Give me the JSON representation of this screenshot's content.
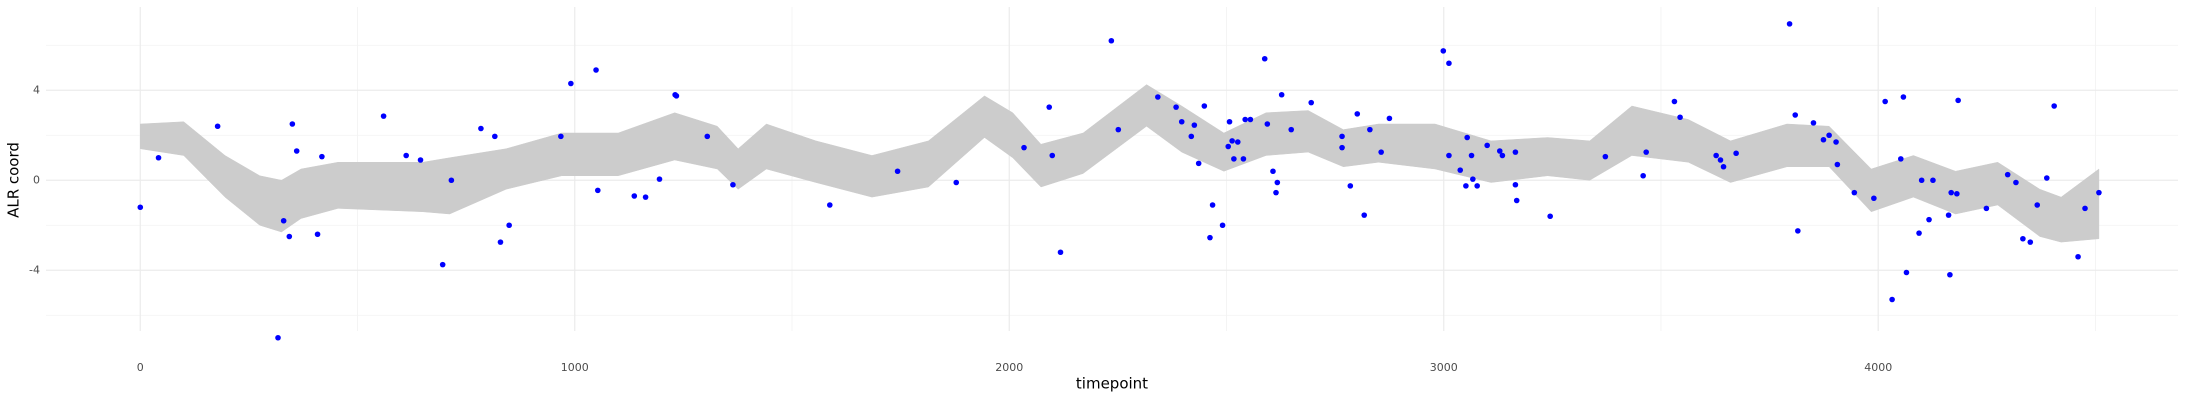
{
  "chart_data": {
    "type": "scatter",
    "x_label": "timepoint",
    "y_label": "ALR coord",
    "xlim": [
      -217,
      4690
    ],
    "ylim": [
      -6.7,
      7.7
    ],
    "xticks": [
      0,
      1000,
      2000,
      3000,
      4000
    ],
    "yticks": [
      -4,
      0,
      4
    ],
    "grid": true,
    "minor_grid": true,
    "color": "#0000ff",
    "ribbon_color": "#cccccc",
    "ribbon": {
      "x": [
        0,
        100,
        195,
        275,
        325,
        370,
        455,
        650,
        712,
        842,
        970,
        1100,
        1230,
        1328,
        1376,
        1441,
        1555,
        1684,
        1814,
        1943,
        2008,
        2073,
        2170,
        2316,
        2397,
        2494,
        2591,
        2688,
        2769,
        2850,
        2980,
        3109,
        3239,
        3336,
        3433,
        3563,
        3660,
        3790,
        3887,
        3984,
        4081,
        4178,
        4275,
        4372,
        4421,
        4508
      ],
      "upper": [
        2.5,
        2.6,
        1.1,
        0.2,
        0,
        0.5,
        0.8,
        0.8,
        1.0,
        1.4,
        2.1,
        2.1,
        3.0,
        2.4,
        1.4,
        2.5,
        1.75,
        1.1,
        1.75,
        3.75,
        3.0,
        1.6,
        2.1,
        4.25,
        3.3,
        2.1,
        3.0,
        3.1,
        2.25,
        2.5,
        2.5,
        1.75,
        1.9,
        1.75,
        3.3,
        2.7,
        1.75,
        2.5,
        2.4,
        0.5,
        1.1,
        0.4,
        0.8,
        -0.4,
        -0.75,
        0.5
      ],
      "lower": [
        1.4,
        1.1,
        -0.75,
        -2.0,
        -2.3,
        -1.7,
        -1.25,
        -1.4,
        -1.5,
        -0.4,
        0.2,
        0.2,
        0.9,
        0.5,
        -0.4,
        0.5,
        -0.1,
        -0.75,
        -0.3,
        1.9,
        1.0,
        -0.3,
        0.3,
        2.4,
        1.25,
        0.4,
        1.1,
        1.25,
        0.6,
        0.8,
        0.5,
        -0.1,
        0.2,
        0,
        1.1,
        0.8,
        -0.1,
        0.6,
        0.6,
        -1.4,
        -0.75,
        -1.5,
        -1.1,
        -2.5,
        -2.75,
        -2.6
      ]
    },
    "x": [
      0,
      42,
      178,
      330,
      317,
      343,
      350,
      360,
      408,
      418,
      560,
      612,
      645,
      696,
      716,
      784,
      816,
      829,
      849,
      968,
      991,
      1049,
      1053,
      1137,
      1163,
      1195,
      1231,
      1234,
      1305,
      1364,
      1587,
      1743,
      1878,
      2034,
      2092,
      2099,
      2118,
      2235,
      2251,
      2342,
      2384,
      2397,
      2419,
      2426,
      2436,
      2449,
      2462,
      2468,
      2491,
      2504,
      2507,
      2513,
      2517,
      2526,
      2539,
      2543,
      2555,
      2588,
      2594,
      2607,
      2614,
      2617,
      2627,
      2649,
      2695,
      2766,
      2766,
      2785,
      2801,
      2817,
      2830,
      2856,
      2875,
      2999,
      3012,
      3012,
      3038,
      3051,
      3054,
      3064,
      3067,
      3077,
      3100,
      3129,
      3135,
      3165,
      3165,
      3168,
      3245,
      3372,
      3459,
      3466,
      3531,
      3544,
      3627,
      3637,
      3644,
      3673,
      3796,
      3809,
      3815,
      3851,
      3874,
      3887,
      3903,
      3906,
      3945,
      3990,
      4016,
      4032,
      4052,
      4058,
      4065,
      4094,
      4100,
      4117,
      4126,
      4162,
      4165,
      4168,
      4181,
      4184,
      4249,
      4298,
      4317,
      4333,
      4350,
      4366,
      4388,
      4405,
      4460,
      4476,
      4508
    ],
    "values": [
      -1.2,
      1.0,
      2.4,
      -1.8,
      -7.0,
      -2.5,
      2.5,
      1.3,
      -2.4,
      1.05,
      2.85,
      1.1,
      0.9,
      -3.75,
      0,
      2.3,
      1.95,
      -2.75,
      -2.0,
      1.95,
      4.3,
      4.9,
      -0.45,
      -0.7,
      -0.75,
      0.05,
      3.8,
      3.75,
      1.95,
      -0.2,
      -1.1,
      0.4,
      -0.1,
      1.45,
      3.25,
      1.1,
      -3.2,
      6.2,
      2.25,
      3.7,
      3.25,
      2.6,
      1.95,
      2.45,
      0.75,
      3.3,
      -2.55,
      -1.1,
      -2.0,
      1.5,
      2.6,
      1.75,
      0.95,
      1.7,
      0.95,
      2.7,
      2.7,
      5.4,
      2.5,
      0.4,
      -0.55,
      -0.1,
      3.8,
      2.25,
      3.45,
      1.95,
      1.45,
      -0.25,
      2.95,
      -1.55,
      2.25,
      1.25,
      2.75,
      5.75,
      5.2,
      1.1,
      0.45,
      -0.25,
      1.9,
      1.1,
      0.05,
      -0.25,
      1.55,
      1.3,
      1.1,
      1.25,
      -0.2,
      -0.9,
      -1.6,
      1.05,
      0.2,
      1.25,
      3.5,
      2.8,
      1.1,
      0.9,
      0.6,
      1.2,
      6.95,
      2.9,
      -2.25,
      2.55,
      1.8,
      2.0,
      1.7,
      0.7,
      -0.55,
      -0.8,
      3.5,
      -5.3,
      0.95,
      3.7,
      -4.1,
      -2.35,
      0,
      -1.75,
      0,
      -1.55,
      -4.2,
      -0.55,
      -0.6,
      3.55,
      -1.25,
      0.25,
      -0.1,
      -2.6,
      -2.75,
      -1.1,
      0.1,
      3.3,
      -3.4,
      -1.25,
      -0.55
    ]
  }
}
